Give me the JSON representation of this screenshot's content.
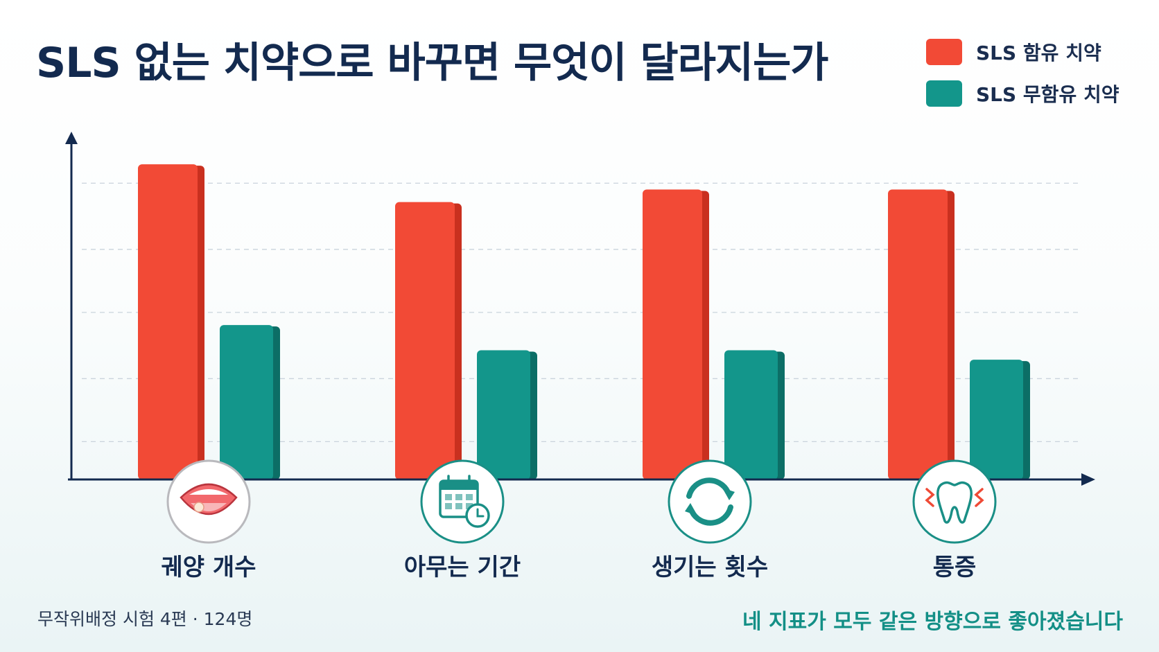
{
  "title": "SLS 없는 치약으로 바꾸면 무엇이 달라지는가",
  "footnote": "무작위배정 시험 4편 · 124명",
  "conclusion": "네 지표가 모두 같은 방향으로 좋아졌습니다",
  "colors": {
    "sls": "#f24a36",
    "sls_dark": "#c9301f",
    "sls_free": "#13968b",
    "sls_free_dark": "#0c6e66",
    "axis": "#132a4f",
    "accent_text": "#138f86"
  },
  "category_icons": [
    "mouth-ulcer-icon",
    "calendar-clock-icon",
    "cycle-arrows-icon",
    "tooth-pain-icon"
  ],
  "chart_data": {
    "type": "bar",
    "title": "SLS 없는 치약으로 바꾸면 무엇이 달라지는가",
    "categories": [
      "궤양 개수",
      "아무는 기간",
      "생기는 횟수",
      "통증"
    ],
    "series": [
      {
        "name": "SLS 함유 치약",
        "values": [
          100,
          88,
          92,
          92
        ]
      },
      {
        "name": "SLS 무함유 치약",
        "values": [
          49,
          41,
          41,
          38
        ]
      }
    ],
    "ylim": [
      0,
      102
    ],
    "grid": true,
    "legend": "top-right",
    "xlabel": "",
    "ylabel": ""
  }
}
